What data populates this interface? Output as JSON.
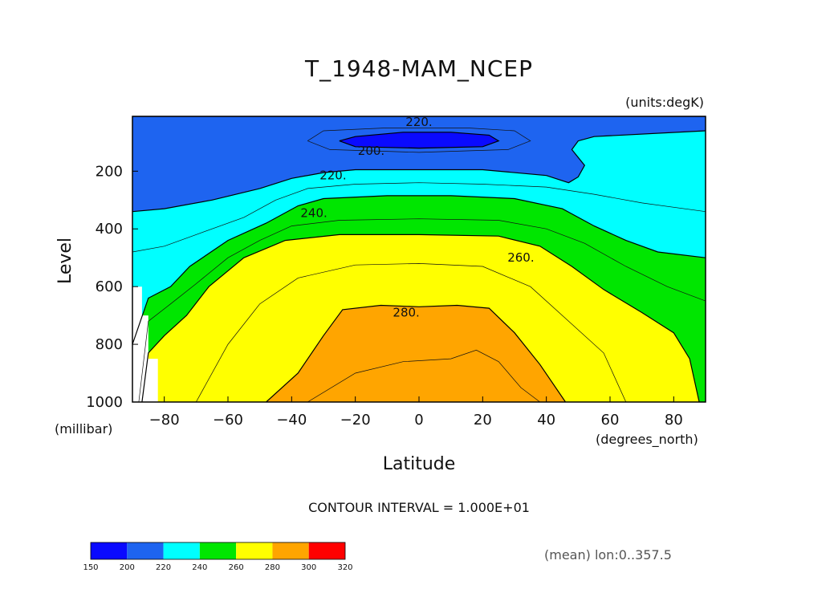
{
  "chart_data": {
    "type": "contour",
    "title": "T_1948-MAM_NCEP",
    "units": "(units:degK)",
    "xlabel": "Latitude",
    "x_units": "(degrees_north)",
    "ylabel": "Level",
    "y_units": "(millibar)",
    "xlim": [
      -90,
      90
    ],
    "ylim": [
      1000,
      10
    ],
    "x_ticks": [
      -80,
      -60,
      -40,
      -20,
      0,
      20,
      40,
      60,
      80
    ],
    "y_ticks": [
      200,
      400,
      600,
      800,
      1000
    ],
    "contour_interval_text": "CONTOUR INTERVAL = 1.000E+01",
    "averaging_note": "(mean) lon:0..357.5",
    "colorbar": {
      "levels": [
        150,
        200,
        220,
        240,
        260,
        280,
        300,
        320
      ],
      "colors": [
        "#0a0aff",
        "#1e64f0",
        "#00ffff",
        "#00e600",
        "#ffff00",
        "#ffa500",
        "#ff0000"
      ]
    },
    "contour_labels": [
      {
        "text": "220.",
        "x": 0,
        "y": 30
      },
      {
        "text": "200.",
        "x": -15,
        "y": 130
      },
      {
        "text": "220.",
        "x": -27,
        "y": 215
      },
      {
        "text": "240.",
        "x": -33,
        "y": 345
      },
      {
        "text": "260.",
        "x": 32,
        "y": 500
      },
      {
        "text": "280.",
        "x": -4,
        "y": 690
      }
    ],
    "contours": [
      {
        "level": 200,
        "points": [
          [
            -25,
            95
          ],
          [
            -20,
            80
          ],
          [
            -5,
            65
          ],
          [
            10,
            65
          ],
          [
            22,
            75
          ],
          [
            25,
            95
          ],
          [
            20,
            115
          ],
          [
            0,
            120
          ],
          [
            -20,
            115
          ],
          [
            -25,
            95
          ]
        ]
      },
      {
        "level": 220,
        "points": [
          [
            -90,
            10
          ],
          [
            90,
            10
          ],
          [
            90,
            5
          ],
          [
            -90,
            5
          ]
        ]
      },
      {
        "level": 220,
        "points": [
          [
            -90,
            340
          ],
          [
            -80,
            330
          ],
          [
            -65,
            300
          ],
          [
            -50,
            260
          ],
          [
            -40,
            225
          ],
          [
            -30,
            205
          ],
          [
            -20,
            195
          ],
          [
            0,
            195
          ],
          [
            20,
            195
          ],
          [
            40,
            215
          ],
          [
            47,
            240
          ],
          [
            50,
            220
          ],
          [
            52,
            180
          ],
          [
            48,
            125
          ],
          [
            50,
            95
          ],
          [
            55,
            80
          ],
          [
            90,
            60
          ]
        ]
      },
      {
        "level": 240,
        "points": [
          [
            -90,
            800
          ],
          [
            -85,
            640
          ],
          [
            -78,
            600
          ],
          [
            -72,
            530
          ],
          [
            -60,
            440
          ],
          [
            -48,
            380
          ],
          [
            -38,
            320
          ],
          [
            -30,
            295
          ],
          [
            -10,
            285
          ],
          [
            10,
            285
          ],
          [
            30,
            295
          ],
          [
            45,
            330
          ],
          [
            55,
            390
          ],
          [
            65,
            440
          ],
          [
            75,
            480
          ],
          [
            90,
            500
          ]
        ]
      },
      {
        "level": 260,
        "points": [
          [
            -87,
            1000
          ],
          [
            -85,
            830
          ],
          [
            -80,
            770
          ],
          [
            -73,
            700
          ],
          [
            -66,
            600
          ],
          [
            -55,
            500
          ],
          [
            -42,
            440
          ],
          [
            -25,
            420
          ],
          [
            0,
            420
          ],
          [
            25,
            425
          ],
          [
            38,
            460
          ],
          [
            48,
            530
          ],
          [
            58,
            610
          ],
          [
            70,
            690
          ],
          [
            80,
            760
          ],
          [
            85,
            850
          ],
          [
            88,
            1000
          ]
        ]
      },
      {
        "level": 280,
        "points": [
          [
            -48,
            1000
          ],
          [
            -38,
            900
          ],
          [
            -30,
            770
          ],
          [
            -24,
            680
          ],
          [
            -12,
            665
          ],
          [
            0,
            670
          ],
          [
            12,
            665
          ],
          [
            22,
            675
          ],
          [
            30,
            760
          ],
          [
            38,
            870
          ],
          [
            46,
            1000
          ]
        ]
      }
    ],
    "minor_contours": [
      {
        "level": 210,
        "points": [
          [
            -35,
            95
          ],
          [
            -30,
            60
          ],
          [
            -10,
            50
          ],
          [
            15,
            50
          ],
          [
            30,
            60
          ],
          [
            35,
            95
          ],
          [
            28,
            125
          ],
          [
            0,
            135
          ],
          [
            -28,
            125
          ],
          [
            -35,
            95
          ]
        ]
      },
      {
        "level": 230,
        "points": [
          [
            -90,
            480
          ],
          [
            -80,
            460
          ],
          [
            -70,
            420
          ],
          [
            -55,
            360
          ],
          [
            -45,
            300
          ],
          [
            -35,
            260
          ],
          [
            -20,
            245
          ],
          [
            0,
            240
          ],
          [
            20,
            245
          ],
          [
            40,
            255
          ],
          [
            55,
            280
          ],
          [
            70,
            310
          ],
          [
            90,
            340
          ]
        ]
      },
      {
        "level": 250,
        "points": [
          [
            -88,
            1000
          ],
          [
            -85,
            720
          ],
          [
            -78,
            660
          ],
          [
            -70,
            590
          ],
          [
            -60,
            500
          ],
          [
            -50,
            440
          ],
          [
            -40,
            390
          ],
          [
            -25,
            370
          ],
          [
            0,
            365
          ],
          [
            25,
            370
          ],
          [
            40,
            400
          ],
          [
            52,
            450
          ],
          [
            65,
            530
          ],
          [
            78,
            600
          ],
          [
            90,
            650
          ]
        ]
      },
      {
        "level": 270,
        "points": [
          [
            -70,
            1000
          ],
          [
            -60,
            800
          ],
          [
            -50,
            660
          ],
          [
            -38,
            570
          ],
          [
            -20,
            525
          ],
          [
            0,
            520
          ],
          [
            20,
            530
          ],
          [
            35,
            600
          ],
          [
            45,
            700
          ],
          [
            58,
            830
          ],
          [
            65,
            1000
          ]
        ]
      },
      {
        "level": 290,
        "points": [
          [
            -35,
            1000
          ],
          [
            -20,
            900
          ],
          [
            -5,
            860
          ],
          [
            10,
            850
          ],
          [
            18,
            820
          ],
          [
            25,
            860
          ],
          [
            32,
            950
          ],
          [
            38,
            1000
          ]
        ]
      }
    ]
  }
}
